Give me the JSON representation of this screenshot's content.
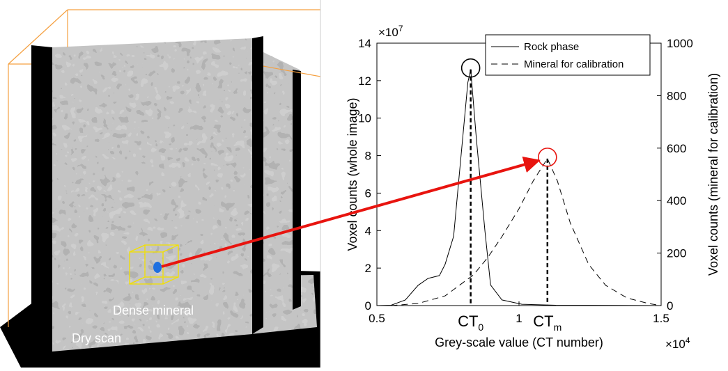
{
  "image": {
    "labels": [
      "Dense mineral",
      "Dry scan"
    ]
  },
  "chart_data": {
    "type": "line",
    "x_label": "Grey-scale value (CT number)",
    "y_label": "Voxel counts (whole image)",
    "y2_label": "Voxel counts (mineral for calibration)",
    "x_multiplier": {
      "base": "×10",
      "power": "4"
    },
    "y_multiplier": {
      "base": "×10",
      "power": "7"
    },
    "xlim": [
      0.5,
      1.5
    ],
    "xticks": [
      0.5,
      1,
      1.5
    ],
    "ylim": [
      0,
      14
    ],
    "yticks": [
      0,
      2,
      4,
      6,
      8,
      10,
      12,
      14
    ],
    "y2lim": [
      0,
      1000
    ],
    "y2ticks": [
      0,
      200,
      400,
      600,
      800,
      1000
    ],
    "legend": "top-right",
    "series": [
      {
        "name": "Rock phase",
        "color": "#000000",
        "dash": "solid",
        "axis": "y",
        "x": [
          0.5,
          0.55,
          0.6,
          0.645,
          0.68,
          0.72,
          0.74,
          0.77,
          0.79,
          0.82,
          0.83,
          0.85,
          0.88,
          0.9,
          0.94,
          1.01,
          1.13,
          1.5
        ],
        "values": [
          0,
          0.02,
          0.3,
          1.08,
          1.45,
          1.6,
          2.2,
          3.7,
          7,
          11.9,
          12.6,
          8.9,
          4,
          1.1,
          0.3,
          0.07,
          0.02,
          0
        ]
      },
      {
        "name": "Mineral for calibration",
        "color": "#000000",
        "dash": "dashed",
        "axis": "y2",
        "x": [
          0.55,
          0.645,
          0.74,
          0.84,
          0.89,
          0.94,
          1,
          1.05,
          1.1,
          1.135,
          1.18,
          1.245,
          1.305,
          1.38,
          1.455,
          1.5
        ],
        "values": [
          0,
          8,
          37,
          117,
          183,
          263,
          369,
          475,
          560,
          475,
          316,
          157,
          77,
          29,
          8,
          0
        ]
      }
    ],
    "annotations": [
      {
        "text": "CT",
        "sub": "0",
        "x": 0.83,
        "y": 12.6,
        "axis": "y"
      },
      {
        "text": "CT",
        "sub": "m",
        "x": 1.1,
        "y": 560,
        "axis": "y2"
      }
    ]
  }
}
